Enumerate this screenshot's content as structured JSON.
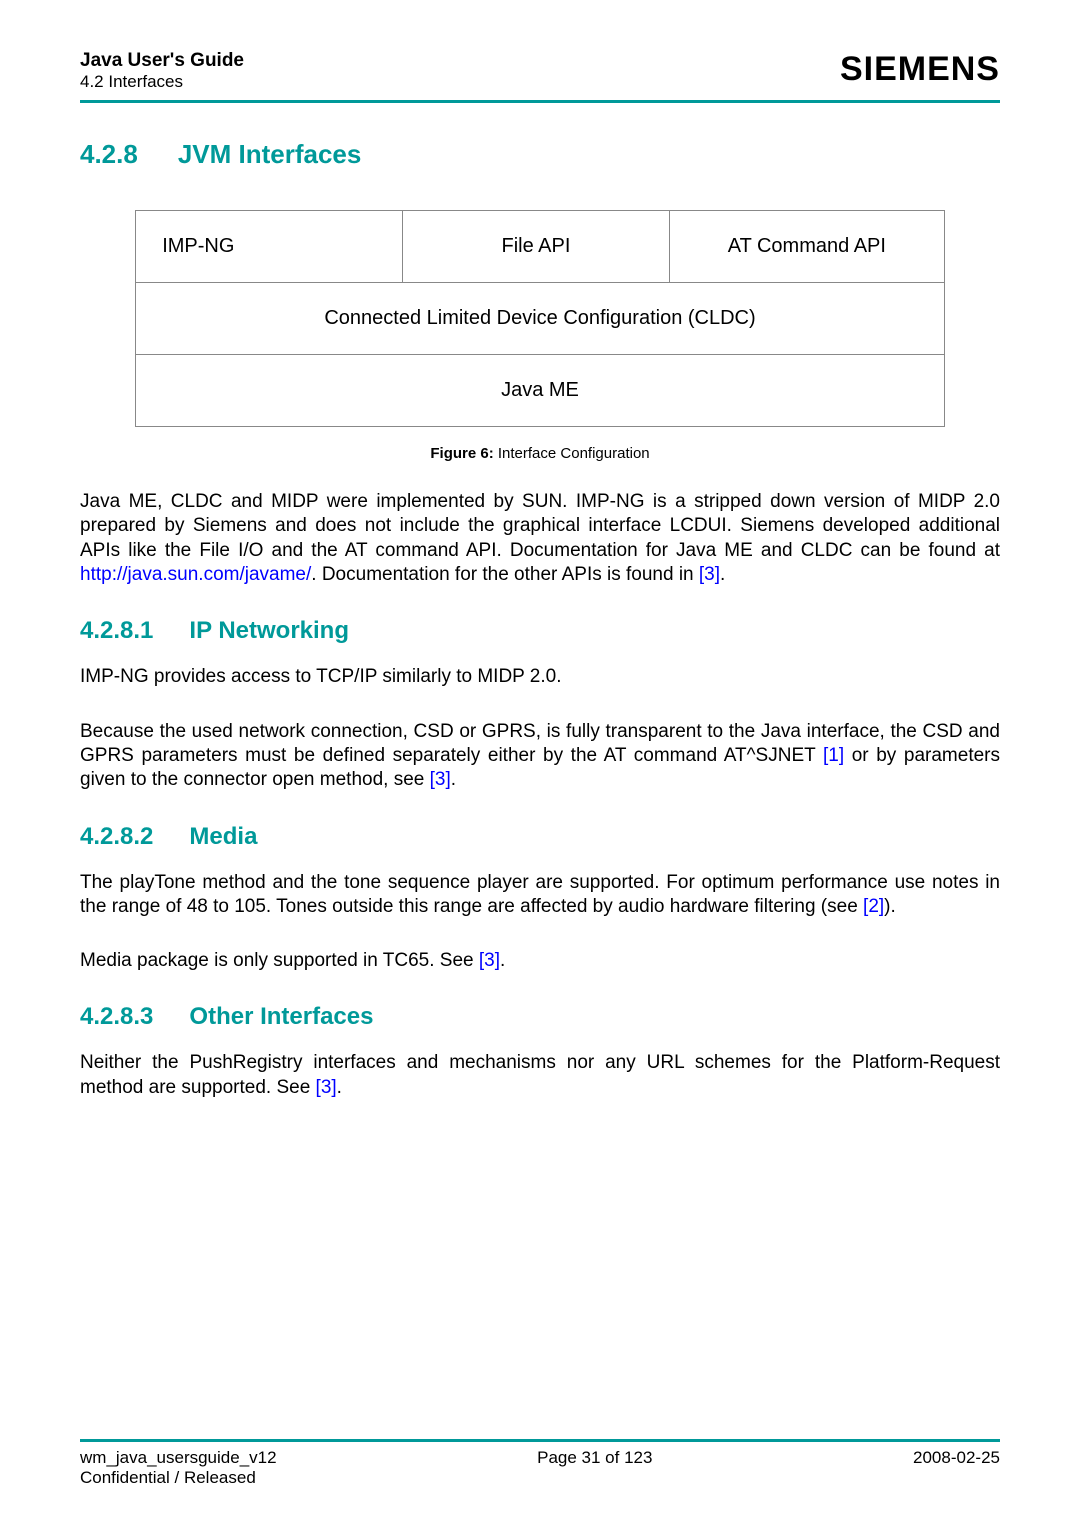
{
  "header": {
    "guide_title": "Java User's Guide",
    "guide_subtitle": "4.2 Interfaces",
    "brand": "SIEMENS"
  },
  "section": {
    "main_num": "4.2.8",
    "main_title": "JVM Interfaces"
  },
  "diagram": {
    "row1": {
      "c1": "IMP-NG",
      "c2": "File API",
      "c3": "AT Command API"
    },
    "row2": "Connected Limited Device Configuration (CLDC)",
    "row3": "Java ME"
  },
  "figure": {
    "label": "Figure 6:",
    "caption": "Interface Configuration"
  },
  "paragraphs": {
    "p1_a": "Java ME, CLDC and MIDP were implemented by SUN. IMP-NG is a stripped down version of MIDP 2.0 prepared by Siemens and does not include the graphical interface LCDUI. Siemens developed additional APIs like the File I/O and the AT command API. Documentation for Java ME and CLDC can be found at ",
    "p1_link1": "http://java.sun.com/javame/",
    "p1_b": ". Documentation for the other APIs is found in ",
    "p1_link2": "[3]",
    "p1_c": "."
  },
  "sub1": {
    "num": "4.2.8.1",
    "title": "IP Networking",
    "p1": "IMP-NG provides access to TCP/IP similarly to MIDP 2.0.",
    "p2_a": "Because the used network connection, CSD or GPRS, is fully transparent to the Java interface, the CSD and GPRS parameters must be defined separately either by the AT command AT^SJNET ",
    "p2_link1": "[1]",
    "p2_b": " or by parameters given to the connector open method, see ",
    "p2_link2": "[3]",
    "p2_c": "."
  },
  "sub2": {
    "num": "4.2.8.2",
    "title": "Media",
    "p1_a": "The playTone method and the tone sequence player are supported. For optimum performance use notes in the range of 48 to 105. Tones outside this range are affected by audio hardware filtering (see ",
    "p1_link1": "[2]",
    "p1_b": ").",
    "p2_a": "Media package is only supported in TC65. See ",
    "p2_link1": "[3]",
    "p2_b": "."
  },
  "sub3": {
    "num": "4.2.8.3",
    "title": "Other Interfaces",
    "p1_a": "Neither the PushRegistry interfaces and mechanisms nor any URL schemes for the Platform-Request method are supported. See ",
    "p1_link1": "[3]",
    "p1_b": "."
  },
  "footer": {
    "left_line1": "wm_java_usersguide_v12",
    "left_line2": "Confidential / Released",
    "center": "Page 31 of 123",
    "right": "2008-02-25"
  },
  "colors": {
    "accent": "#009999",
    "link": "#0000ff"
  }
}
